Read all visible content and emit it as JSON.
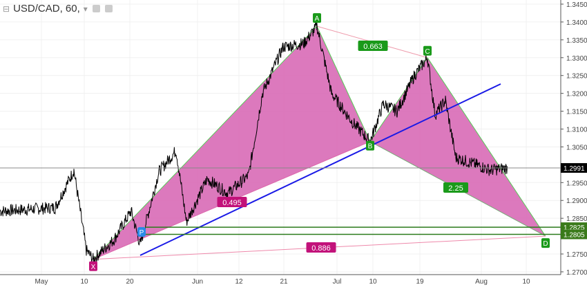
{
  "header": {
    "symbol_title": "USD/CAD, 60,",
    "collapse_icon": "minus-square-icon",
    "dropdown_icon": "chevron-down-icon",
    "eye_icon": "eye-icon",
    "settings_icon": "gear-icon"
  },
  "chart_data": {
    "type": "line",
    "title": "USD/CAD, 60,",
    "ylim": [
      1.2685,
      1.3465
    ],
    "y_ticks": [
      "1.3450",
      "1.3400",
      "1.3350",
      "1.3300",
      "1.3250",
      "1.3200",
      "1.3150",
      "1.3100",
      "1.3050",
      "1.2950",
      "1.2900",
      "1.2850",
      "1.2750",
      "1.2700"
    ],
    "x_ticks": [
      "May",
      "10",
      "20",
      "Jun",
      "12",
      "21",
      "Jul",
      "10",
      "19",
      "Aug",
      "10"
    ],
    "current_price": "1.2991",
    "horizontal_levels": [
      {
        "label": "1.2825",
        "value": 1.2825
      },
      {
        "label": "1.2805",
        "value": 1.2805
      }
    ],
    "grid": true,
    "pattern_points": [
      {
        "label": "X",
        "price": 1.2735,
        "color": "#c2127a"
      },
      {
        "label": "A",
        "price": 1.3388,
        "color": "#1a9a1a"
      },
      {
        "label": "B",
        "price": 1.3065,
        "color": "#1a9a1a"
      },
      {
        "label": "C",
        "price": 1.33,
        "color": "#1a9a1a"
      },
      {
        "label": "D",
        "price": 1.28,
        "color": "#1a9a1a"
      }
    ],
    "ratios": [
      {
        "label": "0.663",
        "color": "#1a9a1a"
      },
      {
        "label": "0.495",
        "color": "#c2127a"
      },
      {
        "label": "0.886",
        "color": "#c2127a"
      },
      {
        "label": "2.25",
        "color": "#1a9a1a"
      }
    ],
    "marker_p": "P",
    "colors": {
      "pattern_fill": "#d86ab6",
      "trendline": "#1a1ae6",
      "level": "#2a7a1a",
      "price": "#000000"
    }
  }
}
